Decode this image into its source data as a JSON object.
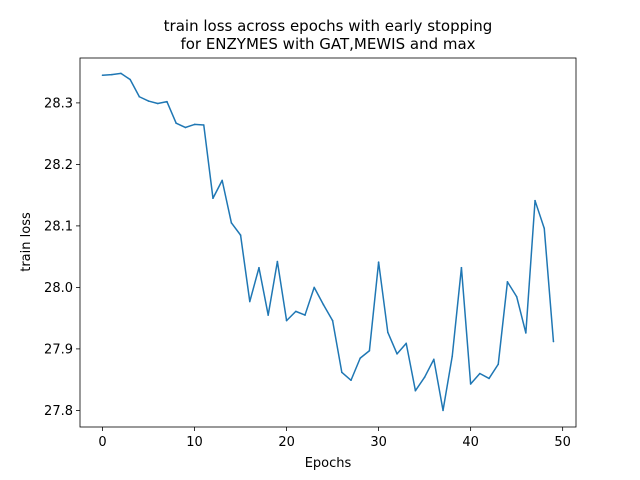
{
  "chart_data": {
    "type": "line",
    "title_line1": "train loss across epochs with early stopping",
    "title_line2": "for ENZYMES with GAT,MEWIS and max",
    "xlabel": "Epochs",
    "ylabel": "train loss",
    "xlim": [
      -2.45,
      51.45
    ],
    "ylim": [
      27.773,
      28.373
    ],
    "x_ticks": [
      0,
      10,
      20,
      30,
      40,
      50
    ],
    "y_ticks": [
      27.8,
      27.9,
      28.0,
      28.1,
      28.2,
      28.3
    ],
    "grid": false,
    "legend": "none",
    "series": [
      {
        "color": "#1f77b4",
        "x": [
          0,
          1,
          2,
          3,
          4,
          5,
          6,
          7,
          8,
          9,
          10,
          11,
          12,
          13,
          14,
          15,
          16,
          17,
          18,
          19,
          20,
          21,
          22,
          23,
          24,
          25,
          26,
          27,
          28,
          29,
          30,
          31,
          32,
          33,
          34,
          35,
          36,
          37,
          38,
          39,
          40,
          41,
          42,
          43,
          44,
          45,
          46,
          47,
          48,
          49
        ],
        "values": [
          28.345,
          28.346,
          28.348,
          28.338,
          28.31,
          28.303,
          28.299,
          28.302,
          28.267,
          28.26,
          28.265,
          28.264,
          28.145,
          28.174,
          28.105,
          28.085,
          27.977,
          28.032,
          27.955,
          28.042,
          27.946,
          27.961,
          27.955,
          28.0,
          27.972,
          27.946,
          27.862,
          27.849,
          27.885,
          27.897,
          28.041,
          27.927,
          27.892,
          27.909,
          27.832,
          27.854,
          27.883,
          27.8,
          27.888,
          28.032,
          27.843,
          27.86,
          27.852,
          27.875,
          28.009,
          27.985,
          27.926,
          28.141,
          28.096,
          27.912
        ]
      }
    ]
  }
}
